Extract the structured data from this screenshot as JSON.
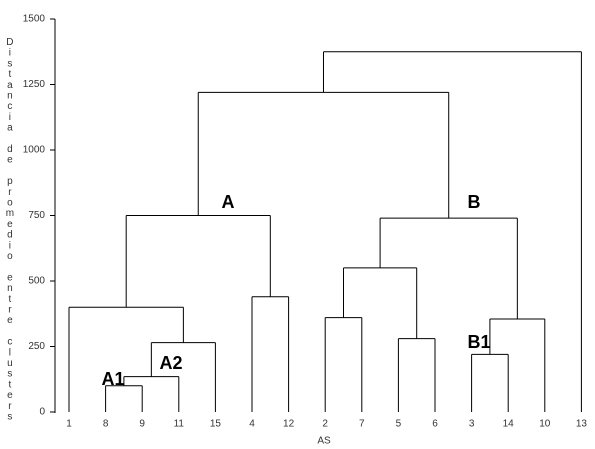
{
  "chart_data": {
    "type": "dendrogram",
    "x_label": "AS",
    "y_label": "Distancia de promedio entre clusters",
    "ylim": [
      0,
      1500
    ],
    "yticks": [
      0,
      250,
      500,
      750,
      1000,
      {
        "value": 1250,
        "label": "1250"
      },
      1500
    ],
    "color": "#000000",
    "tree": {
      "height": 1375,
      "children": [
        {
          "height": 1220,
          "children": [
            {
              "height": 750,
              "children": [
                {
                  "height": 400,
                  "children": [
                    "1",
                    {
                      "height": 265,
                      "children": [
                        {
                          "height": 135,
                          "children": [
                            {
                              "height": 100,
                              "children": [
                                "8",
                                "9"
                              ]
                            },
                            "11"
                          ]
                        },
                        "15"
                      ]
                    }
                  ]
                },
                {
                  "height": 440,
                  "children": [
                    "4",
                    "12"
                  ]
                }
              ]
            },
            {
              "height": 740,
              "children": [
                {
                  "height": 550,
                  "children": [
                    {
                      "height": 360,
                      "children": [
                        "2",
                        "7"
                      ]
                    },
                    {
                      "height": 280,
                      "children": [
                        "5",
                        "6"
                      ]
                    }
                  ]
                },
                {
                  "height": 355,
                  "children": [
                    {
                      "height": 220,
                      "children": [
                        "3",
                        "14"
                      ]
                    },
                    "10"
                  ]
                }
              ]
            }
          ]
        },
        "13"
      ]
    },
    "annotations": [
      "A",
      "B",
      "A1",
      "A2",
      "B1"
    ]
  }
}
